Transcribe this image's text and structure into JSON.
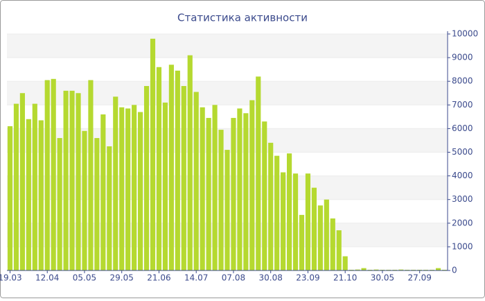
{
  "chart_data": {
    "type": "bar",
    "title": "Статистика активности",
    "categories": [
      "19.03",
      null,
      null,
      null,
      null,
      null,
      "12.04",
      null,
      null,
      null,
      null,
      null,
      "05.05",
      null,
      null,
      null,
      null,
      null,
      "29.05",
      null,
      null,
      null,
      null,
      null,
      "21.06",
      null,
      null,
      null,
      null,
      null,
      "14.07",
      null,
      null,
      null,
      null,
      null,
      "07.08",
      null,
      null,
      null,
      null,
      null,
      "30.08",
      null,
      null,
      null,
      null,
      null,
      "23.09",
      null,
      null,
      null,
      null,
      null,
      "21.10",
      null,
      null,
      null,
      null,
      null,
      "30.05",
      null,
      null,
      null,
      null,
      null,
      "27.09",
      null,
      null,
      null,
      null
    ],
    "values": [
      6100,
      7050,
      7500,
      6400,
      7050,
      6350,
      8050,
      8100,
      5600,
      7600,
      7600,
      7500,
      5900,
      8050,
      5600,
      6600,
      5250,
      7350,
      6900,
      6850,
      7000,
      6700,
      7800,
      9800,
      8600,
      7100,
      8700,
      8450,
      7800,
      9100,
      7550,
      6900,
      6450,
      7000,
      5950,
      5100,
      6450,
      6850,
      6650,
      7200,
      8200,
      6300,
      5400,
      4850,
      4150,
      4950,
      4100,
      2350,
      4100,
      3500,
      2750,
      3000,
      2200,
      1700,
      600,
      30,
      40,
      100,
      30,
      40,
      30,
      30,
      30,
      40,
      30,
      30,
      30,
      30,
      30,
      100,
      30
    ],
    "color": "#b5d930",
    "ylim": [
      0,
      10000
    ],
    "yticks": [
      0,
      1000,
      2000,
      3000,
      4000,
      5000,
      6000,
      7000,
      8000,
      9000,
      10000
    ],
    "grid": true
  }
}
